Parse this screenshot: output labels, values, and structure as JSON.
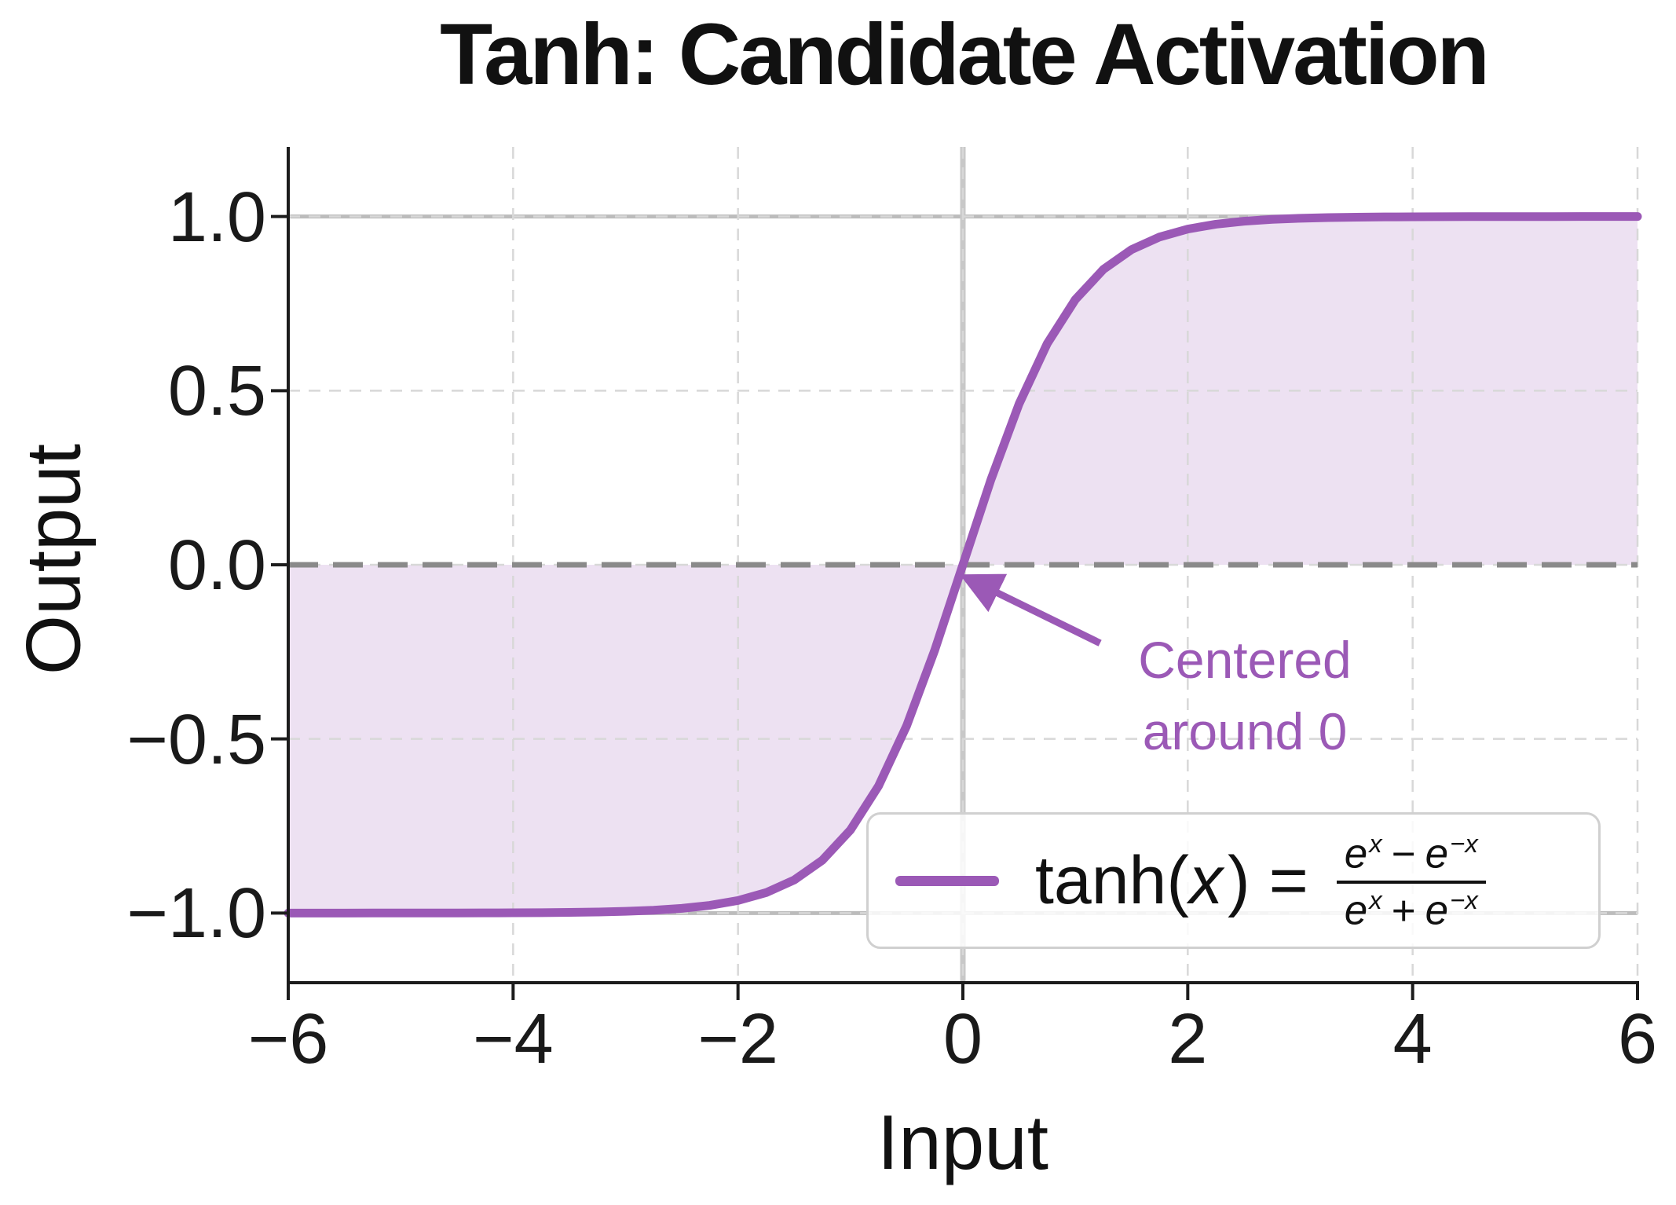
{
  "chart_data": {
    "type": "line",
    "title": "Tanh: Candidate Activation",
    "xlabel": "Input",
    "ylabel": "Output",
    "xlim": [
      -6,
      6
    ],
    "ylim": [
      -1.2,
      1.2
    ],
    "grid": true,
    "grid_style": "dashed",
    "x_ticks": [
      -6,
      -4,
      -2,
      0,
      2,
      4,
      6
    ],
    "x_tick_labels": [
      "−6",
      "−4",
      "−2",
      "0",
      "2",
      "4",
      "6"
    ],
    "y_ticks": [
      -1.0,
      -0.5,
      0.0,
      0.5,
      1.0
    ],
    "y_tick_labels": [
      "−1.0",
      "−0.5",
      "0.0",
      "0.5",
      "1.0"
    ],
    "series": [
      {
        "name": "tanh(x) = (e^x − e^−x) / (e^x + e^−x)",
        "color": "#9b59b6",
        "fill_to_y": 0,
        "fill_color": "rgba(155,89,182,0.18)",
        "x": [
          -6,
          -5.75,
          -5.5,
          -5.25,
          -5,
          -4.75,
          -4.5,
          -4.25,
          -4,
          -3.75,
          -3.5,
          -3.25,
          -3,
          -2.75,
          -2.5,
          -2.25,
          -2,
          -1.75,
          -1.5,
          -1.25,
          -1,
          -0.75,
          -0.5,
          -0.25,
          0,
          0.25,
          0.5,
          0.75,
          1,
          1.25,
          1.5,
          1.75,
          2,
          2.25,
          2.5,
          2.75,
          3,
          3.25,
          3.5,
          3.75,
          4,
          4.25,
          4.5,
          4.75,
          5,
          5.25,
          5.5,
          5.75,
          6
        ],
        "y": [
          -1,
          -1,
          -1,
          -0.9999,
          -0.9999,
          -0.9999,
          -0.9998,
          -0.9996,
          -0.9993,
          -0.9989,
          -0.9982,
          -0.997,
          -0.9951,
          -0.9919,
          -0.9866,
          -0.978,
          -0.964,
          -0.9414,
          -0.9051,
          -0.8483,
          -0.7616,
          -0.6351,
          -0.4621,
          -0.2449,
          0,
          0.2449,
          0.4621,
          0.6351,
          0.7616,
          0.8483,
          0.9051,
          0.9414,
          0.964,
          0.978,
          0.9866,
          0.9919,
          0.9951,
          0.997,
          0.9982,
          0.9989,
          0.9993,
          0.9996,
          0.9998,
          0.9999,
          0.9999,
          0.9999,
          1,
          1,
          1
        ]
      }
    ],
    "reference_lines": [
      {
        "axis": "y",
        "value": 1,
        "style": "solid",
        "color": "#bcbcbc",
        "width": 5
      },
      {
        "axis": "y",
        "value": -1,
        "style": "solid",
        "color": "#bcbcbc",
        "width": 5
      },
      {
        "axis": "x",
        "value": 0,
        "style": "solid",
        "color": "#c8c8c8",
        "width": 7
      },
      {
        "axis": "y",
        "value": 0,
        "style": "dashed",
        "color": "#8a8a8a",
        "width": 7
      }
    ],
    "annotation": {
      "text_line1": "Centered",
      "text_line2": "around 0",
      "color": "#9b59b6",
      "arrow_tip_xy": [
        0.05,
        -0.04
      ],
      "arrow_tail_xy": [
        1.22,
        -0.225
      ]
    },
    "legend": {
      "loc": "lower right",
      "fn": "tanh(",
      "arg": "x",
      "close_eq": ") =",
      "e": "e",
      "sup_pos": "x",
      "sup_neg": "−x",
      "minus": "−",
      "plus": "+",
      "series_color": "#9b59b6"
    },
    "colors": {
      "curve": "#9b59b6",
      "fill": "rgba(155,89,182,0.18)",
      "annotation": "#9b59b6",
      "grid": "#d8d8d8",
      "spine": "#1c1c1c"
    }
  }
}
